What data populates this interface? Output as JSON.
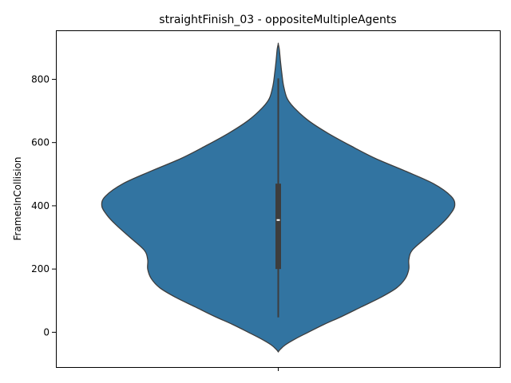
{
  "chart_data": {
    "type": "violin",
    "title": "straightFinish_03 - oppositeMultipleAgents",
    "xlabel": "",
    "ylabel": "FramesInCollision",
    "ylim": [
      -110,
      955
    ],
    "yticks": [
      0,
      200,
      400,
      600,
      800
    ],
    "categories": [
      ""
    ],
    "grid": false,
    "legend": "none",
    "color": "#3274a1",
    "edge_color": "#3d3d3d",
    "box": {
      "whisker_low": 47,
      "q1": 200,
      "median": 355,
      "q3": 470,
      "whisker_high": 803
    },
    "density_profile": [
      {
        "y": -62,
        "half_width": 0.0
      },
      {
        "y": -55,
        "half_width": 0.01
      },
      {
        "y": -40,
        "half_width": 0.04
      },
      {
        "y": -20,
        "half_width": 0.1
      },
      {
        "y": 0,
        "half_width": 0.17
      },
      {
        "y": 25,
        "half_width": 0.26
      },
      {
        "y": 50,
        "half_width": 0.36
      },
      {
        "y": 80,
        "half_width": 0.47
      },
      {
        "y": 110,
        "half_width": 0.58
      },
      {
        "y": 140,
        "half_width": 0.67
      },
      {
        "y": 170,
        "half_width": 0.72
      },
      {
        "y": 200,
        "half_width": 0.74
      },
      {
        "y": 230,
        "half_width": 0.74
      },
      {
        "y": 260,
        "half_width": 0.76
      },
      {
        "y": 300,
        "half_width": 0.84
      },
      {
        "y": 340,
        "half_width": 0.92
      },
      {
        "y": 370,
        "half_width": 0.97
      },
      {
        "y": 400,
        "half_width": 1.0
      },
      {
        "y": 430,
        "half_width": 0.98
      },
      {
        "y": 470,
        "half_width": 0.88
      },
      {
        "y": 510,
        "half_width": 0.72
      },
      {
        "y": 550,
        "half_width": 0.55
      },
      {
        "y": 590,
        "half_width": 0.41
      },
      {
        "y": 630,
        "half_width": 0.28
      },
      {
        "y": 670,
        "half_width": 0.17
      },
      {
        "y": 710,
        "half_width": 0.09
      },
      {
        "y": 740,
        "half_width": 0.05
      },
      {
        "y": 780,
        "half_width": 0.03
      },
      {
        "y": 820,
        "half_width": 0.02
      },
      {
        "y": 860,
        "half_width": 0.012
      },
      {
        "y": 895,
        "half_width": 0.006
      },
      {
        "y": 912,
        "half_width": 0.0
      }
    ]
  }
}
